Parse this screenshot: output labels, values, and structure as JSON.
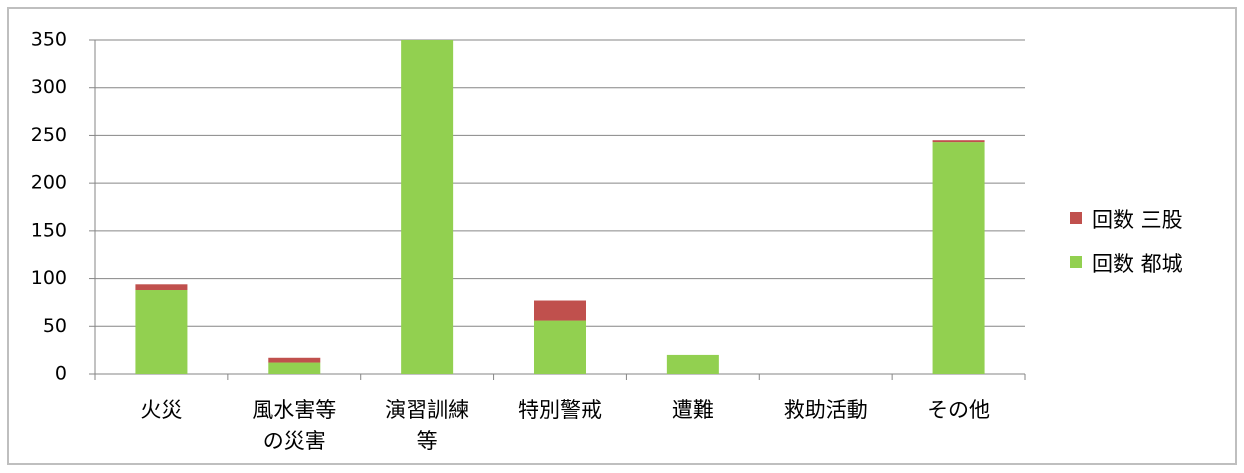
{
  "chart_data": {
    "type": "stacked_bar",
    "categories": [
      "火災",
      "風水害等\nの災害",
      "演習訓練\n等",
      "特別警戒",
      "遭難",
      "救助活動",
      "その他"
    ],
    "series": [
      {
        "name": "回数 都城",
        "color": "#92d050",
        "values": [
          88,
          12,
          350,
          56,
          20,
          0,
          243
        ]
      },
      {
        "name": "回数 三股",
        "color": "#c0504d",
        "values": [
          6,
          5,
          0,
          21,
          0,
          0,
          2
        ]
      }
    ],
    "ylim": [
      0,
      350
    ],
    "yticks": [
      0,
      50,
      100,
      150,
      200,
      250,
      300,
      350
    ],
    "grid": true,
    "legend": "right"
  }
}
